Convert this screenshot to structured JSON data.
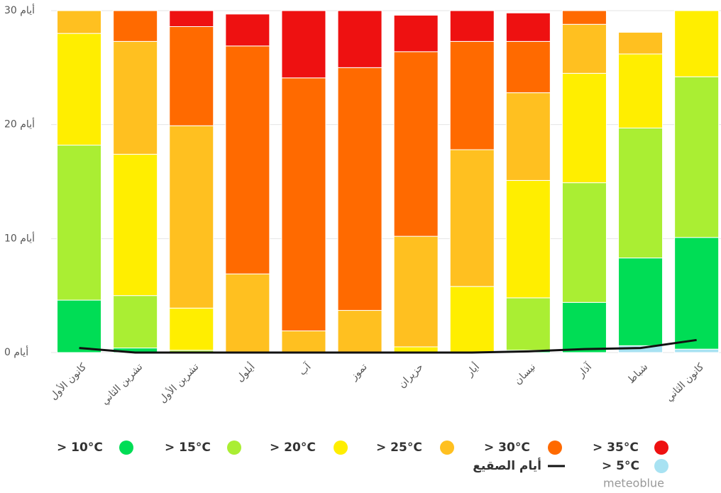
{
  "chart_data": {
    "type": "bar",
    "stacked": true,
    "categories": [
      "كانون الأول",
      "تشرين الثاني",
      "تشرين الأول",
      "أيلول",
      "آب",
      "تموز",
      "حزيران",
      "أيار",
      "نيسان",
      "آذار",
      "شباط",
      "كانون الثاني"
    ],
    "series": [
      {
        "name": "> 5°C",
        "color": "#a8e2f2",
        "values": [
          0,
          0,
          0,
          0,
          0,
          0,
          0,
          0,
          0,
          0,
          0.6,
          0.3
        ]
      },
      {
        "name": "> 10°C",
        "color": "#00dd55",
        "values": [
          4.6,
          0.4,
          0,
          0,
          0,
          0,
          0,
          0,
          0.2,
          4.4,
          7.7,
          9.8
        ]
      },
      {
        "name": "> 15°C",
        "color": "#aaee33",
        "values": [
          13.6,
          4.6,
          0.2,
          0,
          0,
          0,
          0,
          0,
          4.6,
          10.5,
          11.4,
          14.1
        ]
      },
      {
        "name": "> 20°C",
        "color": "#ffee00",
        "values": [
          9.8,
          12.4,
          3.7,
          0,
          0,
          0,
          0.5,
          5.8,
          10.3,
          9.6,
          6.5,
          5.8
        ]
      },
      {
        "name": "> 25°C",
        "color": "#ffc020",
        "values": [
          2.0,
          9.9,
          16.0,
          6.9,
          1.9,
          3.7,
          9.7,
          12.0,
          7.7,
          4.3,
          1.9,
          0
        ]
      },
      {
        "name": "> 30°C",
        "color": "#ff6a00",
        "values": [
          0,
          2.7,
          8.7,
          20.0,
          22.2,
          21.3,
          16.2,
          9.5,
          4.5,
          1.2,
          0,
          0
        ]
      },
      {
        "name": "> 35°C",
        "color": "#ee1111",
        "values": [
          0,
          0,
          1.4,
          2.8,
          5.9,
          5.0,
          3.2,
          2.7,
          2.5,
          0,
          0,
          0
        ]
      },
      {
        "name": "أيام الصقيع",
        "type": "line",
        "color": "#111111",
        "values": [
          0.4,
          0,
          0,
          0,
          0,
          0,
          0,
          0,
          0.1,
          0.3,
          0.4,
          1.1
        ]
      }
    ],
    "ylim": [
      0,
      30
    ],
    "yticks": [
      {
        "value": 0,
        "label": "0 أيام"
      },
      {
        "value": 10,
        "label": "10 أيام"
      },
      {
        "value": 20,
        "label": "20 أيام"
      },
      {
        "value": 30,
        "label": "30 أيام"
      }
    ],
    "grid": true,
    "watermark": "meteoblue"
  }
}
